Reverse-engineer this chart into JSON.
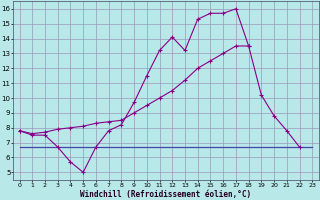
{
  "xlabel": "Windchill (Refroidissement éolien,°C)",
  "background_color": "#b8e8e8",
  "grid_color": "#9999bb",
  "line_color": "#880088",
  "flat_line_color": "#4444aa",
  "xlim": [
    -0.5,
    23.5
  ],
  "ylim": [
    4.5,
    16.5
  ],
  "xticks": [
    0,
    1,
    2,
    3,
    4,
    5,
    6,
    7,
    8,
    9,
    10,
    11,
    12,
    13,
    14,
    15,
    16,
    17,
    18,
    19,
    20,
    21,
    22,
    23
  ],
  "yticks": [
    5,
    6,
    7,
    8,
    9,
    10,
    11,
    12,
    13,
    14,
    15,
    16
  ],
  "line1_x": [
    0,
    1,
    2,
    3,
    4,
    5,
    6,
    7,
    8,
    9,
    10,
    11,
    12,
    13,
    14,
    15,
    16,
    17,
    18,
    19,
    20,
    21,
    22
  ],
  "line1_y": [
    7.8,
    7.5,
    7.5,
    6.7,
    5.7,
    5.0,
    6.7,
    7.8,
    8.2,
    9.7,
    11.5,
    13.2,
    14.1,
    13.2,
    15.3,
    15.7,
    15.7,
    16.0,
    13.5,
    10.2,
    8.8,
    7.8,
    6.7
  ],
  "line2_x": [
    0,
    1,
    2,
    3,
    4,
    5,
    6,
    7,
    8,
    9,
    10,
    11,
    12,
    13,
    14,
    15,
    16,
    17,
    18
  ],
  "line2_y": [
    7.8,
    7.6,
    7.7,
    7.9,
    8.0,
    8.1,
    8.3,
    8.4,
    8.5,
    9.0,
    9.5,
    10.0,
    10.5,
    11.2,
    12.0,
    12.5,
    13.0,
    13.5,
    13.5
  ],
  "line3_x": [
    0,
    23
  ],
  "line3_y": [
    6.7,
    6.7
  ]
}
